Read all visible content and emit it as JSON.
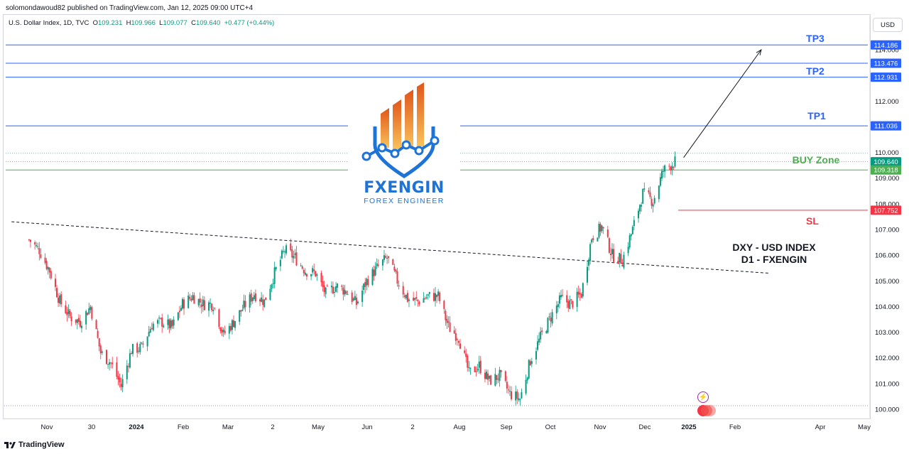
{
  "header": {
    "published": "solomondawoud82 published on TradingView.com, Jan 12, 2025 09:00 UTC+4"
  },
  "legend": {
    "symbol": "U.S. Dollar Index, 1D, TVC",
    "open_label": "O",
    "open": "109.231",
    "high_label": "H",
    "high": "109.966",
    "low_label": "L",
    "low": "109.077",
    "close_label": "C",
    "close": "109.640",
    "change": "+0.477 (+0.44%)"
  },
  "currency_button": "USD",
  "logo": {
    "title": "FXENGIN",
    "subtitle": "FOREX ENGINEER"
  },
  "annotations": {
    "tp3": "TP3",
    "tp2": "TP2",
    "tp1": "TP1",
    "buy_zone": "BUY Zone",
    "sl": "SL",
    "dxy_line1": "DXY - USD INDEX",
    "dxy_line2": "D1 - FXENGIN"
  },
  "footer": {
    "brand": "TradingView"
  },
  "colors": {
    "up": "#089981",
    "down": "#f23645",
    "tp": "#2962ff",
    "buy": "#4caf50",
    "sl": "#f23645",
    "logo": "#1e73d6",
    "logo_orange": "#f08a24"
  },
  "chart_data": {
    "type": "candlestick",
    "symbol": "DXY",
    "timeframe": "1D",
    "ylim": [
      99.8,
      115.0
    ],
    "y_ticks": [
      "114.000",
      "113.000",
      "112.000",
      "111.000",
      "110.000",
      "109.000",
      "108.000",
      "107.000",
      "106.000",
      "105.000",
      "104.000",
      "103.000",
      "102.000",
      "101.000",
      "100.000"
    ],
    "x_ticks": [
      "Nov",
      "30",
      "2024",
      "Feb",
      "Mar",
      "2",
      "May",
      "Jun",
      "2",
      "Aug",
      "Sep",
      "Oct",
      "Nov",
      "Dec",
      "2025",
      "Feb",
      "Apr",
      "May"
    ],
    "price_series": [
      [
        "2023-10-26",
        106.6
      ],
      [
        "2023-11-02",
        106.2
      ],
      [
        "2023-11-09",
        105.4
      ],
      [
        "2023-11-16",
        104.2
      ],
      [
        "2023-11-23",
        103.6
      ],
      [
        "2023-11-30",
        103.4
      ],
      [
        "2023-12-07",
        104.0
      ],
      [
        "2023-12-14",
        102.2
      ],
      [
        "2023-12-21",
        101.8
      ],
      [
        "2023-12-28",
        100.9
      ],
      [
        "2024-01-04",
        102.3
      ],
      [
        "2024-01-11",
        102.4
      ],
      [
        "2024-01-18",
        103.3
      ],
      [
        "2024-01-25",
        103.4
      ],
      [
        "2024-02-01",
        103.2
      ],
      [
        "2024-02-08",
        104.1
      ],
      [
        "2024-02-15",
        104.4
      ],
      [
        "2024-02-22",
        104.1
      ],
      [
        "2024-02-29",
        104.1
      ],
      [
        "2024-03-07",
        102.9
      ],
      [
        "2024-03-14",
        103.4
      ],
      [
        "2024-03-21",
        104.0
      ],
      [
        "2024-03-28",
        104.5
      ],
      [
        "2024-04-04",
        104.2
      ],
      [
        "2024-04-11",
        105.3
      ],
      [
        "2024-04-18",
        106.2
      ],
      [
        "2024-04-25",
        105.9
      ],
      [
        "2024-05-02",
        105.4
      ],
      [
        "2024-05-09",
        105.3
      ],
      [
        "2024-05-16",
        104.5
      ],
      [
        "2024-05-23",
        104.8
      ],
      [
        "2024-05-30",
        104.6
      ],
      [
        "2024-06-06",
        104.1
      ],
      [
        "2024-06-13",
        105.0
      ],
      [
        "2024-06-20",
        105.5
      ],
      [
        "2024-06-27",
        105.9
      ],
      [
        "2024-07-04",
        105.0
      ],
      [
        "2024-07-11",
        104.3
      ],
      [
        "2024-07-18",
        104.2
      ],
      [
        "2024-07-25",
        104.4
      ],
      [
        "2024-08-01",
        104.4
      ],
      [
        "2024-08-08",
        103.2
      ],
      [
        "2024-08-15",
        102.8
      ],
      [
        "2024-08-22",
        101.4
      ],
      [
        "2024-08-29",
        101.7
      ],
      [
        "2024-09-05",
        101.1
      ],
      [
        "2024-09-12",
        101.3
      ],
      [
        "2024-09-19",
        100.6
      ],
      [
        "2024-09-26",
        100.4
      ],
      [
        "2024-10-03",
        101.9
      ],
      [
        "2024-10-10",
        102.8
      ],
      [
        "2024-10-17",
        103.6
      ],
      [
        "2024-10-24",
        104.3
      ],
      [
        "2024-10-31",
        104.1
      ],
      [
        "2024-11-07",
        104.5
      ],
      [
        "2024-11-14",
        106.7
      ],
      [
        "2024-11-21",
        107.1
      ],
      [
        "2024-11-28",
        106.0
      ],
      [
        "2024-12-05",
        105.8
      ],
      [
        "2024-12-12",
        107.0
      ],
      [
        "2024-12-19",
        108.4
      ],
      [
        "2024-12-26",
        108.1
      ],
      [
        "2025-01-02",
        109.3
      ],
      [
        "2025-01-10",
        109.64
      ]
    ],
    "levels": [
      {
        "label": "TP3",
        "value": 114.186
      },
      {
        "label": "",
        "value": 113.476
      },
      {
        "label": "TP2",
        "value": 112.931
      },
      {
        "label": "TP1",
        "value": 111.036
      },
      {
        "label": "BUY Zone",
        "value": 109.318
      },
      {
        "label": "SL",
        "value": 107.752
      }
    ],
    "last_price": 109.64,
    "price_labels": [
      "114.186",
      "113.476",
      "112.931",
      "111.036",
      "109.640",
      "109.318",
      "107.752"
    ],
    "trendline": {
      "from": [
        "2023-10-14",
        107.3
      ],
      "to": [
        "2025-03-15",
        105.3
      ]
    },
    "projection_arrow": {
      "from": [
        "2025-01-12",
        109.8
      ],
      "to": [
        "2025-03-10",
        114.0
      ]
    }
  }
}
